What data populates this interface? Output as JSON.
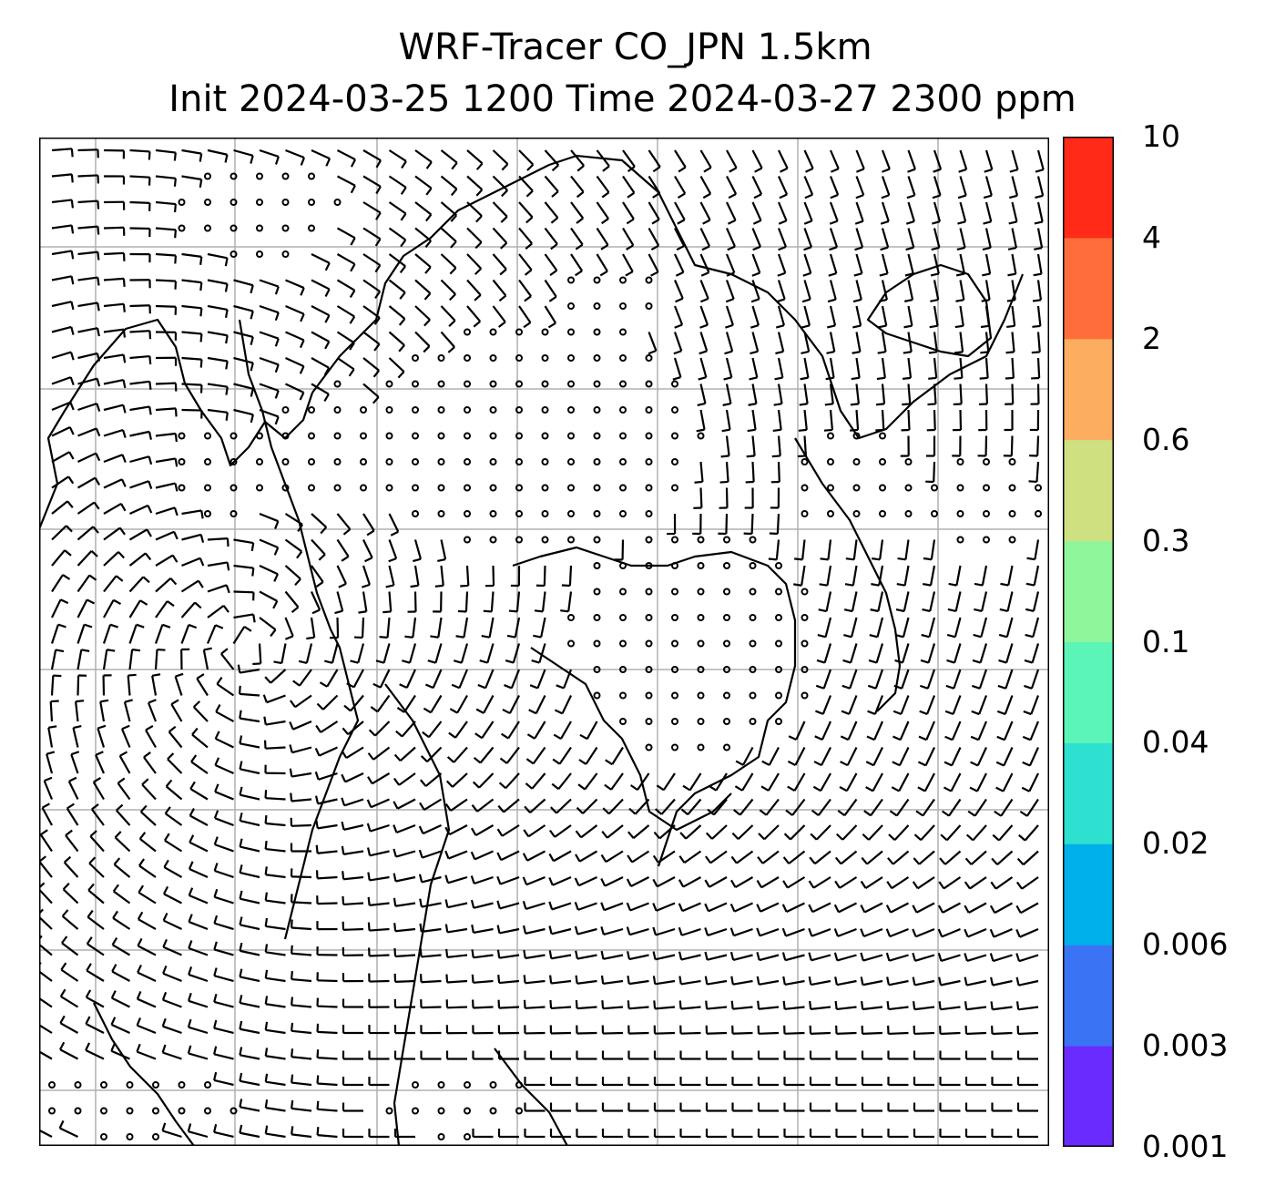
{
  "title": {
    "line1": "WRF-Tracer CO_JPN 1.5km",
    "line2": "Init 2024-03-25 1200 Time 2024-03-27 2300 ppm"
  },
  "colorbar": {
    "ticks": [
      "0.001",
      "0.003",
      "0.006",
      "0.02",
      "0.04",
      "0.1",
      "0.3",
      "0.6",
      "2",
      "4",
      "10"
    ],
    "colors": [
      "#6a2bff",
      "#3a74f5",
      "#00b0e8",
      "#2ee0d0",
      "#5cf5b8",
      "#8ef59a",
      "#cfe080",
      "#fcad60",
      "#ff6e3a",
      "#ff2a18"
    ]
  },
  "map": {
    "gridline_color": "#b0b0b0",
    "coastline_color": "#000000",
    "barb_color": "#000000"
  }
}
